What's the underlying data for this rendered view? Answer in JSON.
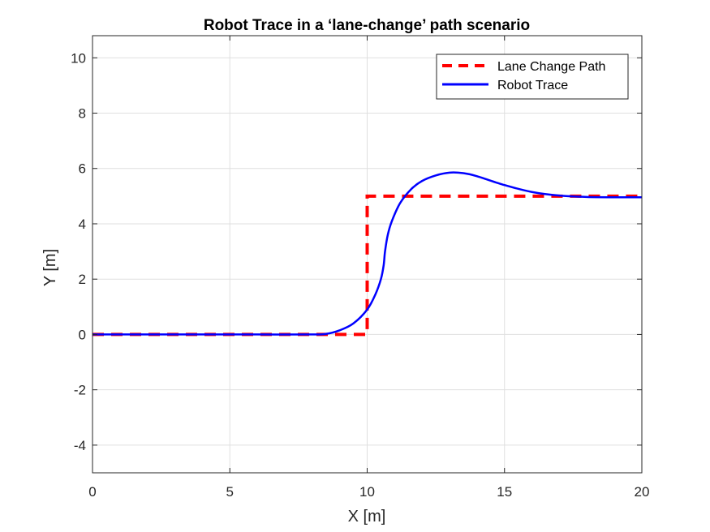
{
  "chart_data": {
    "type": "line",
    "title": "Robot Trace in a ‘lane-change’ path scenario",
    "xlabel": "X [m]",
    "ylabel": "Y [m]",
    "xlim": [
      0,
      20
    ],
    "ylim": [
      -5,
      10.8
    ],
    "xticks": [
      0,
      5,
      10,
      15,
      20
    ],
    "yticks": [
      -4,
      -2,
      0,
      2,
      4,
      6,
      8,
      10
    ],
    "xtick_labels": [
      "0",
      "5",
      "10",
      "15",
      "20"
    ],
    "ytick_labels": [
      "-4",
      "-2",
      "0",
      "2",
      "4",
      "6",
      "8",
      "10"
    ],
    "grid": true,
    "legend_position": "top-right",
    "series": [
      {
        "name": "Lane Change Path",
        "color": "#ff0000",
        "style": "dashed",
        "x": [
          0,
          10,
          10,
          20
        ],
        "y": [
          0,
          0,
          5,
          5
        ]
      },
      {
        "name": "Robot Trace",
        "color": "#0000ff",
        "style": "solid",
        "x": [
          0,
          2,
          4,
          6,
          8,
          8.5,
          9.0,
          9.5,
          10.0,
          10.3,
          10.5,
          10.6,
          10.65,
          10.75,
          10.9,
          11.2,
          11.6,
          12.0,
          12.5,
          13.0,
          13.5,
          14.0,
          15.0,
          16.0,
          17.0,
          18.0,
          19.0,
          20.0
        ],
        "y": [
          0,
          0,
          0,
          0,
          0,
          0.02,
          0.15,
          0.4,
          0.9,
          1.45,
          2.0,
          2.5,
          3.0,
          3.6,
          4.1,
          4.75,
          5.25,
          5.55,
          5.75,
          5.85,
          5.83,
          5.72,
          5.4,
          5.15,
          5.02,
          4.97,
          4.96,
          4.96
        ]
      }
    ]
  }
}
